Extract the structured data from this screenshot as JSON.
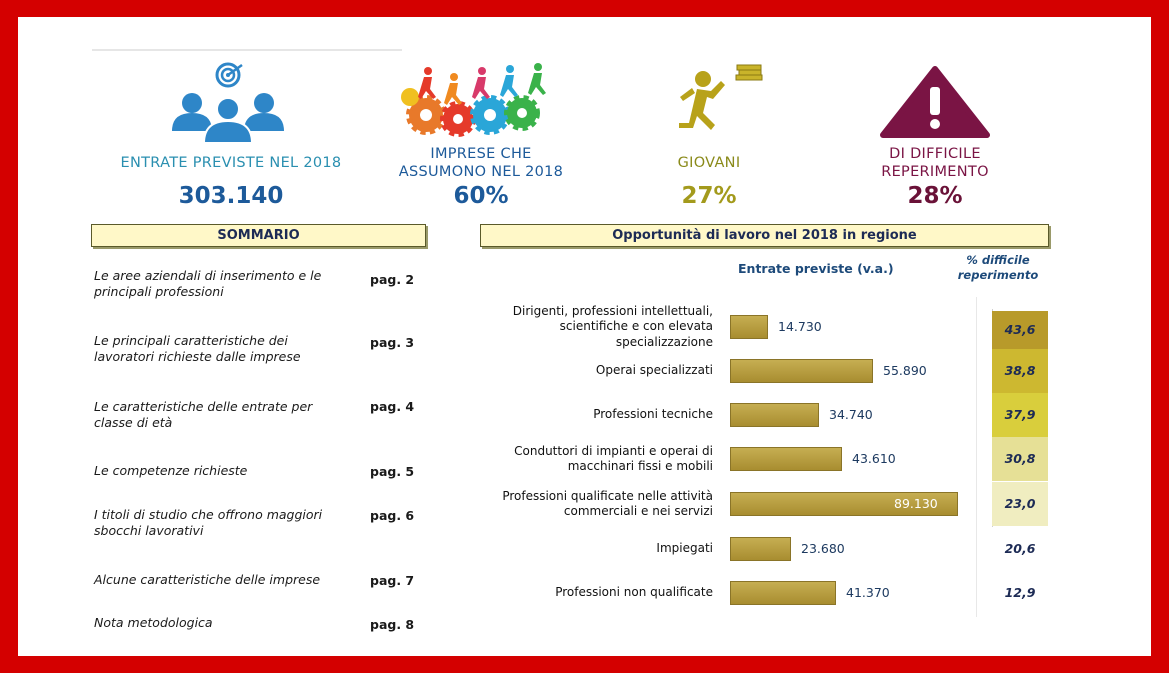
{
  "kpis": [
    {
      "label_lines": [
        "ENTRATE PREVISTE NEL 2018"
      ],
      "value": "303.140",
      "label_color": "#2a8fb0",
      "value_color": "#1d5a9a",
      "icon": "people-target-icon"
    },
    {
      "label_lines": [
        "IMPRESE CHE",
        "ASSUMONO NEL 2018"
      ],
      "value": "60%",
      "label_color": "#1d5a9a",
      "value_color": "#1d5a9a",
      "icon": "gears-runners-icon"
    },
    {
      "label_lines": [
        "GIOVANI"
      ],
      "value": "27%",
      "label_color": "#8a8a1a",
      "value_color": "#a39a1c",
      "icon": "runner-books-icon"
    },
    {
      "label_lines": [
        "DI DIFFICILE",
        "REPERIMENTO"
      ],
      "value": "28%",
      "label_color": "#7a1444",
      "value_color": "#6a1238",
      "icon": "warning-triangle-icon"
    }
  ],
  "sommario": {
    "title": "SOMMARIO",
    "items": [
      {
        "lines": [
          "Le aree aziendali di inserimento e le",
          "principali professioni"
        ],
        "page": "pag. 2"
      },
      {
        "lines": [
          "Le principali caratteristiche dei",
          "lavoratori richieste dalle imprese"
        ],
        "page": "pag. 3"
      },
      {
        "lines": [
          "Le caratteristiche delle entrate per",
          "classe di età"
        ],
        "page": "pag. 4"
      },
      {
        "lines": [
          "Le competenze richieste"
        ],
        "page": "pag. 5"
      },
      {
        "lines": [
          "I titoli di studio che offrono maggiori",
          "sbocchi lavorativi"
        ],
        "page": "pag. 6"
      },
      {
        "lines": [
          "Alcune caratteristiche delle imprese"
        ],
        "page": "pag. 7"
      },
      {
        "lines": [
          "Nota metodologica"
        ],
        "page": "pag. 8"
      }
    ]
  },
  "chart_data": {
    "type": "bar",
    "title": "Opportunità di lavoro nel 2018 in regione",
    "value_header": "Entrate previste (v.a.)",
    "pct_header_lines": [
      "% difficile",
      "reperimento"
    ],
    "categories": [
      [
        "Dirigenti, professioni intellettuali,",
        "scientifiche e con elevata",
        "specializzazione"
      ],
      [
        "Operai specializzati"
      ],
      [
        "Professioni tecniche"
      ],
      [
        "Conduttori di impianti e operai di",
        "macchinari fissi e mobili"
      ],
      [
        "Professioni qualificate nelle attività",
        "commerciali e nei servizi"
      ],
      [
        "Impiegati"
      ],
      [
        "Professioni non qualificate"
      ]
    ],
    "values": [
      14730,
      55890,
      34740,
      43610,
      89130,
      23680,
      41370
    ],
    "value_labels": [
      "14.730",
      "55.890",
      "34.740",
      "43.610",
      "89.130",
      "23.680",
      "41.370"
    ],
    "pct_values": [
      43.6,
      38.8,
      37.9,
      30.8,
      23.0,
      20.6,
      12.9
    ],
    "pct_labels": [
      "43,6",
      "38,8",
      "37,9",
      "30,8",
      "23,0",
      "20,6",
      "12,9"
    ],
    "pct_colors": [
      "#b89a2a",
      "#cdb830",
      "#d9ce3c",
      "#e6e096",
      "#f0edc0",
      "#ffffff",
      "#ffffff"
    ]
  }
}
